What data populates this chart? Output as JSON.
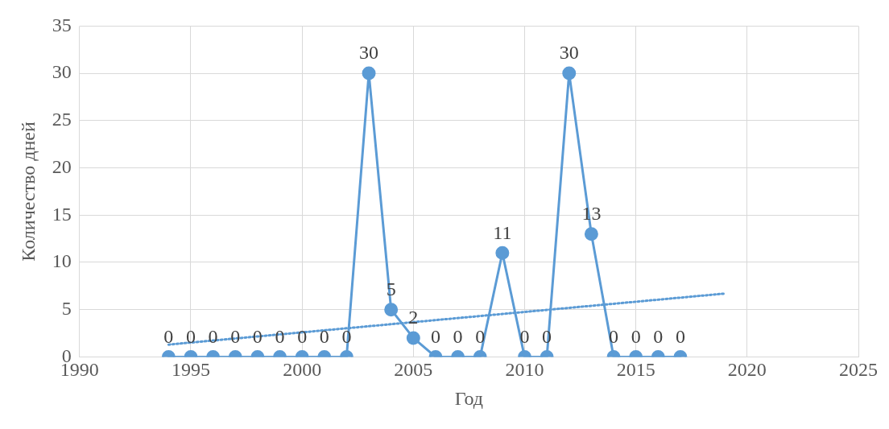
{
  "chart_data": {
    "type": "line",
    "xlabel": "Год",
    "ylabel": "Количество дней",
    "xlim": [
      1990,
      2025
    ],
    "xticks": [
      1990,
      1995,
      2000,
      2005,
      2010,
      2015,
      2020,
      2025
    ],
    "ylim": [
      0,
      35
    ],
    "yticks": [
      0,
      5,
      10,
      15,
      20,
      25,
      30,
      35
    ],
    "grid": true,
    "legend": false,
    "series": [
      {
        "type": "line",
        "color": "#5b9bd5",
        "marker": "circle",
        "line_style": "solid",
        "x": [
          1994,
          1995,
          1996,
          1997,
          1998,
          1999,
          2000,
          2001,
          2002,
          2003,
          2004,
          2005,
          2006,
          2007,
          2008,
          2009,
          2010,
          2011,
          2012,
          2013,
          2014,
          2015,
          2016,
          2017
        ],
        "values": [
          0,
          0,
          0,
          0,
          0,
          0,
          0,
          0,
          0,
          30,
          5,
          2,
          0,
          0,
          0,
          11,
          0,
          0,
          30,
          13,
          0,
          0,
          0,
          0
        ],
        "value_labels": [
          "0",
          "0",
          "0",
          "0",
          "0",
          "0",
          "0",
          "0",
          "0",
          "30",
          "5",
          "2",
          "0",
          "0",
          "0",
          "11",
          "0",
          "0",
          "30",
          "13",
          "0",
          "0",
          "0",
          "0"
        ]
      },
      {
        "type": "line",
        "color": "#5b9bd5",
        "marker": "none",
        "line_style": "dotted",
        "x": [
          1994,
          2019
        ],
        "values": [
          1.3,
          6.7
        ]
      }
    ]
  }
}
